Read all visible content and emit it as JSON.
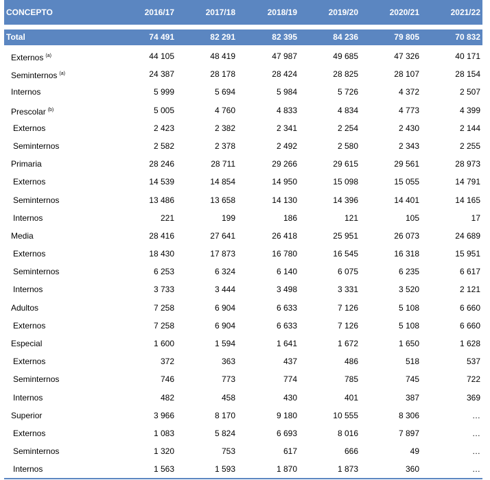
{
  "header": {
    "concept_label": "CONCEPTO",
    "years": [
      "2016/17",
      "2017/18",
      "2018/19",
      "2019/20",
      "2020/21",
      "2021/22"
    ]
  },
  "total": {
    "label": "Total",
    "values": [
      "74 491",
      "82 291",
      "82 395",
      "84 236",
      "79 805",
      "70 832"
    ]
  },
  "rows": [
    {
      "label": "Externos",
      "note": "(a)",
      "sub": false,
      "values": [
        "44 105",
        "48 419",
        "47 987",
        "49 685",
        "47 326",
        "40 171"
      ]
    },
    {
      "label": "Seminternos",
      "note": "(a)",
      "sub": false,
      "values": [
        "24 387",
        "28 178",
        "28 424",
        "28 825",
        "28 107",
        "28 154"
      ]
    },
    {
      "label": "Internos",
      "note": "",
      "sub": false,
      "values": [
        "5 999",
        "5 694",
        "5 984",
        "5 726",
        "4 372",
        "2 507"
      ]
    },
    {
      "label": "Prescolar",
      "note": "(b)",
      "sub": false,
      "values": [
        "5 005",
        "4 760",
        "4 833",
        "4 834",
        "4 773",
        "4 399"
      ]
    },
    {
      "label": "Externos",
      "note": "",
      "sub": true,
      "values": [
        "2 423",
        "2 382",
        "2 341",
        "2 254",
        "2 430",
        "2 144"
      ]
    },
    {
      "label": "Seminternos",
      "note": "",
      "sub": true,
      "values": [
        "2 582",
        "2 378",
        "2 492",
        "2 580",
        "2 343",
        "2 255"
      ]
    },
    {
      "label": "Primaria",
      "note": "",
      "sub": false,
      "values": [
        "28 246",
        "28 711",
        "29 266",
        "29 615",
        "29 561",
        "28 973"
      ]
    },
    {
      "label": "Externos",
      "note": "",
      "sub": true,
      "values": [
        "14 539",
        "14 854",
        "14 950",
        "15 098",
        "15 055",
        "14 791"
      ]
    },
    {
      "label": "Seminternos",
      "note": "",
      "sub": true,
      "values": [
        "13 486",
        "13 658",
        "14 130",
        "14 396",
        "14 401",
        "14 165"
      ]
    },
    {
      "label": "Internos",
      "note": "",
      "sub": true,
      "values": [
        "221",
        "199",
        "186",
        "121",
        "105",
        "17"
      ]
    },
    {
      "label": "Media",
      "note": "",
      "sub": false,
      "values": [
        "28 416",
        "27 641",
        "26 418",
        "25 951",
        "26 073",
        "24 689"
      ]
    },
    {
      "label": "Externos",
      "note": "",
      "sub": true,
      "values": [
        "18 430",
        "17 873",
        "16 780",
        "16 545",
        "16 318",
        "15 951"
      ]
    },
    {
      "label": "Seminternos",
      "note": "",
      "sub": true,
      "values": [
        "6 253",
        "6 324",
        "6 140",
        "6 075",
        "6 235",
        "6 617"
      ]
    },
    {
      "label": "Internos",
      "note": "",
      "sub": true,
      "values": [
        "3 733",
        "3 444",
        "3 498",
        "3 331",
        "3 520",
        "2 121"
      ]
    },
    {
      "label": "Adultos",
      "note": "",
      "sub": false,
      "values": [
        "7 258",
        "6 904",
        "6 633",
        "7 126",
        "5 108",
        "6 660"
      ]
    },
    {
      "label": "Externos",
      "note": "",
      "sub": true,
      "values": [
        "7 258",
        "6 904",
        "6 633",
        "7 126",
        "5 108",
        "6 660"
      ]
    },
    {
      "label": "Especial",
      "note": "",
      "sub": false,
      "values": [
        "1 600",
        "1 594",
        "1 641",
        "1 672",
        "1 650",
        "1 628"
      ]
    },
    {
      "label": "Externos",
      "note": "",
      "sub": true,
      "values": [
        "372",
        "363",
        "437",
        "486",
        "518",
        "537"
      ]
    },
    {
      "label": "Seminternos",
      "note": "",
      "sub": true,
      "values": [
        "746",
        "773",
        "774",
        "785",
        "745",
        "722"
      ]
    },
    {
      "label": "Internos",
      "note": "",
      "sub": true,
      "values": [
        "482",
        "458",
        "430",
        "401",
        "387",
        "369"
      ]
    },
    {
      "label": "Superior",
      "note": "",
      "sub": false,
      "values": [
        "3 966",
        "8 170",
        "9 180",
        "10 555",
        "8 306",
        "…"
      ]
    },
    {
      "label": "Externos",
      "note": "",
      "sub": true,
      "values": [
        "1 083",
        "5 824",
        "6 693",
        "8 016",
        "7 897",
        "…"
      ]
    },
    {
      "label": "Seminternos",
      "note": "",
      "sub": true,
      "values": [
        "1 320",
        "753",
        "617",
        "666",
        "49",
        "…"
      ]
    },
    {
      "label": "Internos",
      "note": "",
      "sub": true,
      "values": [
        "1 563",
        "1 593",
        "1 870",
        "1 873",
        "360",
        "…"
      ]
    }
  ],
  "colors": {
    "header_bg": "#5b86c1",
    "header_text": "#ffffff"
  }
}
